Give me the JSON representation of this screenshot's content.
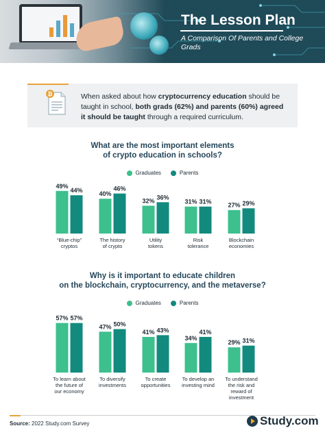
{
  "header": {
    "title": "The Lesson Plan",
    "subtitle": "A Comparison Of Parents and College Grads"
  },
  "intro": {
    "text_1": "When asked about how ",
    "bold_1": "cryptocurrency education",
    "text_2": " should be taught in school, ",
    "bold_2": "both grads (62%) and parents (60%) agreed it should be taught",
    "text_3": " through a required curriculum."
  },
  "colors": {
    "graduates": "#3dbf8e",
    "parents": "#138a7e",
    "title": "#25465a",
    "accent": "#e8a23a"
  },
  "chart_data": [
    {
      "type": "bar",
      "title": "What are the most important elements of crypto education in schools?",
      "title_lines": [
        "What are the most important elements",
        "of crypto education in schools?"
      ],
      "legend": [
        "Graduates",
        "Parents"
      ],
      "categories": [
        "“Blue-chip” cryptos",
        "The history of crypto",
        "Utility tokens",
        "Risk tolerance",
        "Blockchain economies"
      ],
      "category_lines": [
        [
          "“Blue-chip”",
          "cryptos"
        ],
        [
          "The history",
          "of crypto"
        ],
        [
          "Utility",
          "tokens"
        ],
        [
          "Risk",
          "tolerance"
        ],
        [
          "Blockchain",
          "economies"
        ]
      ],
      "series": [
        {
          "name": "Graduates",
          "values": [
            49,
            40,
            32,
            31,
            27
          ]
        },
        {
          "name": "Parents",
          "values": [
            44,
            46,
            36,
            31,
            29
          ]
        }
      ],
      "value_suffix": "%",
      "ylim": [
        0,
        57
      ]
    },
    {
      "type": "bar",
      "title": "Why is it important to educate children on the blockchain, cryptocurrency, and the metaverse?",
      "title_lines": [
        "Why is it important to educate children",
        "on the blockchain, cryptocurrency, and the metaverse?"
      ],
      "legend": [
        "Graduates",
        "Parents"
      ],
      "categories": [
        "To learn about the future of our economy",
        "To diversify investments",
        "To create opportunities",
        "To develop an investing mind",
        "To understand the risk and reward of investment"
      ],
      "category_lines": [
        [
          "To learn about",
          "the future of",
          "our economy"
        ],
        [
          "To diversify",
          "investments"
        ],
        [
          "To create",
          "opportunities"
        ],
        [
          "To develop an",
          "investing mind"
        ],
        [
          "To understand",
          "the risk and",
          "reward of",
          "investment"
        ]
      ],
      "series": [
        {
          "name": "Graduates",
          "values": [
            57,
            47,
            41,
            34,
            29
          ]
        },
        {
          "name": "Parents",
          "values": [
            57,
            50,
            43,
            41,
            31
          ]
        }
      ],
      "value_suffix": "%",
      "ylim": [
        0,
        57
      ]
    }
  ],
  "footer": {
    "source_label": "Source:",
    "source_text": " 2022 Study.com Survey",
    "brand": "Study.com"
  }
}
